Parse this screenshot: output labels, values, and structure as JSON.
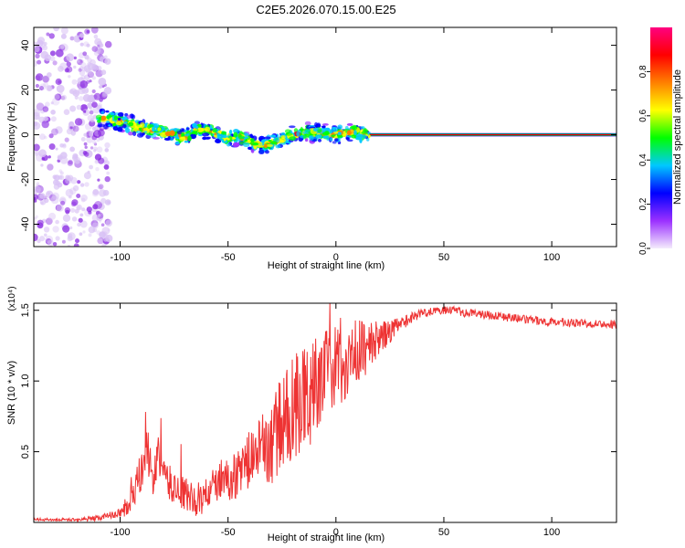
{
  "title": "C2E5.2026.070.15.00.E25",
  "chart_data": [
    {
      "type": "heatmap",
      "xlabel": "Height of straight line (km)",
      "ylabel": "Frequency (Hz)",
      "xlim": [
        -140,
        130
      ],
      "ylim": [
        -50,
        48
      ],
      "xticks": [
        -100,
        -50,
        0,
        50,
        100
      ],
      "yticks": [
        -40,
        -20,
        0,
        20,
        40
      ],
      "colorbar": {
        "label": "Normalized spectral amplitude",
        "range": [
          0,
          1
        ],
        "ticks": [
          "0.0",
          "0.2",
          "0.4",
          "0.6",
          "0.8"
        ],
        "colors": [
          "#f4ecfc",
          "#9b30ff",
          "#0000ff",
          "#00c8ff",
          "#00ff00",
          "#ffff00",
          "#ff8000",
          "#ff0000",
          "#ff0080"
        ]
      },
      "ridge": {
        "x": [
          -110,
          -100,
          -90,
          -80,
          -70,
          -65,
          -60,
          -55,
          -50,
          -45,
          -40,
          -35,
          -30,
          -25,
          -20,
          -15,
          -10,
          -5,
          0,
          5,
          10,
          15,
          130
        ],
        "y": [
          8,
          6,
          3,
          1,
          -1,
          2,
          2,
          0,
          -2,
          -1,
          -3,
          -5,
          -4,
          -2,
          0,
          1,
          1,
          1,
          0,
          1,
          1,
          0,
          0
        ]
      },
      "noise_region": {
        "x": [
          -140,
          -105
        ],
        "y": [
          -50,
          48
        ]
      },
      "constant_tone": {
        "x": [
          12,
          130
        ],
        "y": 0
      }
    },
    {
      "type": "line",
      "xlabel": "Height of straight line (km)",
      "ylabel": "SNR (10 * v/v)",
      "scale_label": "(x10⁴)",
      "xlim": [
        -140,
        130
      ],
      "ylim": [
        0,
        1.55
      ],
      "xticks": [
        -100,
        -50,
        0,
        50,
        100
      ],
      "yticks": [
        "0.5",
        "1.0",
        "1.5"
      ],
      "color": "#ee3333",
      "series": [
        {
          "name": "SNR",
          "x": [
            -140,
            -120,
            -110,
            -100,
            -95,
            -92,
            -90,
            -88,
            -86,
            -84,
            -82,
            -80,
            -78,
            -75,
            -70,
            -65,
            -60,
            -55,
            -50,
            -45,
            -40,
            -35,
            -30,
            -27,
            -25,
            -22,
            -20,
            -18,
            -16,
            -14,
            -12,
            -10,
            -5,
            0,
            5,
            10,
            15,
            20,
            25,
            30,
            35,
            40,
            45,
            50,
            55,
            60,
            70,
            80,
            90,
            100,
            110,
            120,
            130
          ],
          "y": [
            0.02,
            0.02,
            0.03,
            0.07,
            0.15,
            0.25,
            0.35,
            0.55,
            0.4,
            0.3,
            0.5,
            0.35,
            0.28,
            0.25,
            0.2,
            0.15,
            0.2,
            0.28,
            0.3,
            0.35,
            0.45,
            0.5,
            0.55,
            0.65,
            0.7,
            0.75,
            0.8,
            0.85,
            0.9,
            0.85,
            0.9,
            1.0,
            1.05,
            1.1,
            1.15,
            1.2,
            1.25,
            1.3,
            1.35,
            1.4,
            1.45,
            1.48,
            1.5,
            1.5,
            1.5,
            1.48,
            1.47,
            1.45,
            1.43,
            1.42,
            1.41,
            1.41,
            1.4
          ]
        }
      ],
      "noise_amplitude": {
        "x": [
          -140,
          -120,
          -100,
          -95,
          -90,
          -85,
          -80,
          -70,
          -60,
          -50,
          -40,
          -30,
          -20,
          -15,
          -10,
          0,
          10,
          20,
          30,
          40,
          130
        ],
        "amp": [
          0.01,
          0.01,
          0.03,
          0.12,
          0.18,
          0.16,
          0.14,
          0.12,
          0.12,
          0.15,
          0.2,
          0.3,
          0.4,
          0.4,
          0.35,
          0.3,
          0.25,
          0.12,
          0.05,
          0.03,
          0.03
        ]
      }
    }
  ]
}
